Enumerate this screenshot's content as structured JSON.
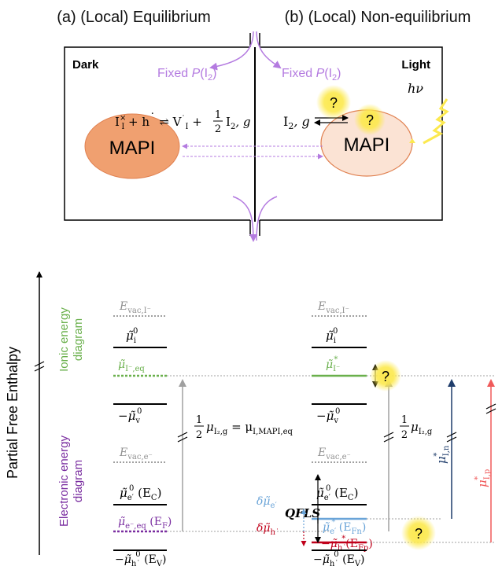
{
  "top": {
    "title_a": "(a) (Local) Equilibrium",
    "title_b": "(b) (Local) Non-equilibrium",
    "dark": "Dark",
    "light": "Light",
    "fixed_left_prefix": "Fixed ",
    "fixed_left_P": "P",
    "fixed_left_I": "(I",
    "fixed_left_sub": "2",
    "fixed_left_close": ")",
    "fixed_right_prefix": "Fixed ",
    "fixed_right_P": "P",
    "fixed_right_I": "(I",
    "fixed_right_sub": "2",
    "fixed_right_close": ")",
    "mapi_left": "MAPI",
    "mapi_right": "MAPI",
    "hv": "hν",
    "q1": "?",
    "q2": "?",
    "reaction": {
      "lhs_I": "I",
      "lhs_sup": "×",
      "lhs_sub": "I",
      "plus1": " + h",
      "dot1": "˙",
      "arrow": " ⇌ ",
      "V": "V",
      "V_dot": "˙",
      "V_sub": "I",
      "plus2": " + ",
      "frac_num": "1",
      "frac_den": "2",
      "I2": "I",
      "I2_sub": "2",
      "g": ", g"
    },
    "i2g": {
      "I": "I",
      "sub": "2",
      "g": ", g"
    }
  },
  "bottom": {
    "y_axis": "Partial Free Enthalpy",
    "ionic_label_1": "Ionic energy",
    "ionic_label_2": "diagram",
    "elec_label_1": "Electronic energy",
    "elec_label_2": "diagram",
    "left": {
      "evac_I": {
        "E": "E",
        "sub": "vac,I⁻"
      },
      "mu_i0": {
        "main": "μ̃",
        "sub": "i",
        "sup": "0"
      },
      "mu_I_eq": {
        "main": "μ̃",
        "sub": "I⁻,eq"
      },
      "mu_v0": {
        "prefix": "−",
        "main": "μ̃",
        "sub": "v",
        "sup": "0"
      },
      "evac_e": {
        "E": "E",
        "sub": "vac,e⁻"
      },
      "mu_e0": {
        "main": "μ̃",
        "sub": "e′",
        "sup": "0",
        "extra": " (E",
        "extra_sub": "C",
        "close": ")"
      },
      "mu_e_eq": {
        "main": "μ̃",
        "sub": "e⁻,eq",
        "extra": " (E",
        "extra_sub": "F",
        "close": ")"
      },
      "mu_h0": {
        "prefix": "−",
        "main": "μ̃",
        "sub": "h˙",
        "sup": "0",
        "extra": " (E",
        "extra_sub": "V",
        "close": ")"
      },
      "eq_frac_num": "1",
      "eq_frac_den": "2",
      "eq_mu": "μ",
      "eq_mu_sub": "I₂,g",
      "eq_rhs": " = μ",
      "eq_rhs_sub": "I,MAPI,eq"
    },
    "right": {
      "evac_I": {
        "E": "E",
        "sub": "vac,I⁻"
      },
      "mu_i0": {
        "main": "μ̃",
        "sub": "i",
        "sup": "0"
      },
      "mu_I_star": {
        "main": "μ̃",
        "sub": "I⁻",
        "sup": "*"
      },
      "mu_v0": {
        "prefix": "−",
        "main": "μ̃",
        "sub": "v",
        "sup": "0"
      },
      "evac_e": {
        "E": "E",
        "sub": "vac,e⁻"
      },
      "mu_e0": {
        "main": "μ̃",
        "sub": "e′",
        "sup": "0",
        "extra": " (E",
        "extra_sub": "C",
        "close": ")"
      },
      "mu_e_star": {
        "main": "μ̃",
        "sub": "e′",
        "sup": "*",
        "extra": " (E",
        "extra_sub": "Fn",
        "close": ")"
      },
      "mu_h_star": {
        "prefix": "−",
        "main": "μ̃",
        "sub": "h˙",
        "sup": "*",
        "extra": "(E",
        "extra_sub": "Fp",
        "close": ")"
      },
      "mu_h0": {
        "prefix": "−",
        "main": "μ̃",
        "sub": "h˙",
        "sup": "0",
        "extra": " (E",
        "extra_sub": "V",
        "close": ")"
      },
      "half_num": "1",
      "half_den": "2",
      "half_mu": "μ",
      "half_sub": "I₂,g",
      "mu_In": {
        "main": "μ",
        "sub": "I,n",
        "sup": "*"
      },
      "mu_Ip": {
        "main": "μ",
        "sub": "I,p",
        "sup": "*"
      },
      "delta_e": {
        "main": "δμ̃",
        "sub": "e′"
      },
      "delta_h": {
        "main": "δμ̃",
        "sub": "h˙"
      },
      "qfls": "QFLS",
      "q3": "?",
      "q4": "?"
    }
  },
  "colors": {
    "purple": "#b47be0",
    "orange": "#f0a070",
    "orange_light": "#fbe3d4",
    "green": "#6ab04c",
    "violet": "#7a2ea0",
    "blue_dark": "#1f3d6b",
    "red_light": "#f05a5a",
    "red_dark": "#c0001a",
    "blue_light": "#6aa4d8",
    "yellow": "#fce94f",
    "gray": "#a0a0a0"
  }
}
